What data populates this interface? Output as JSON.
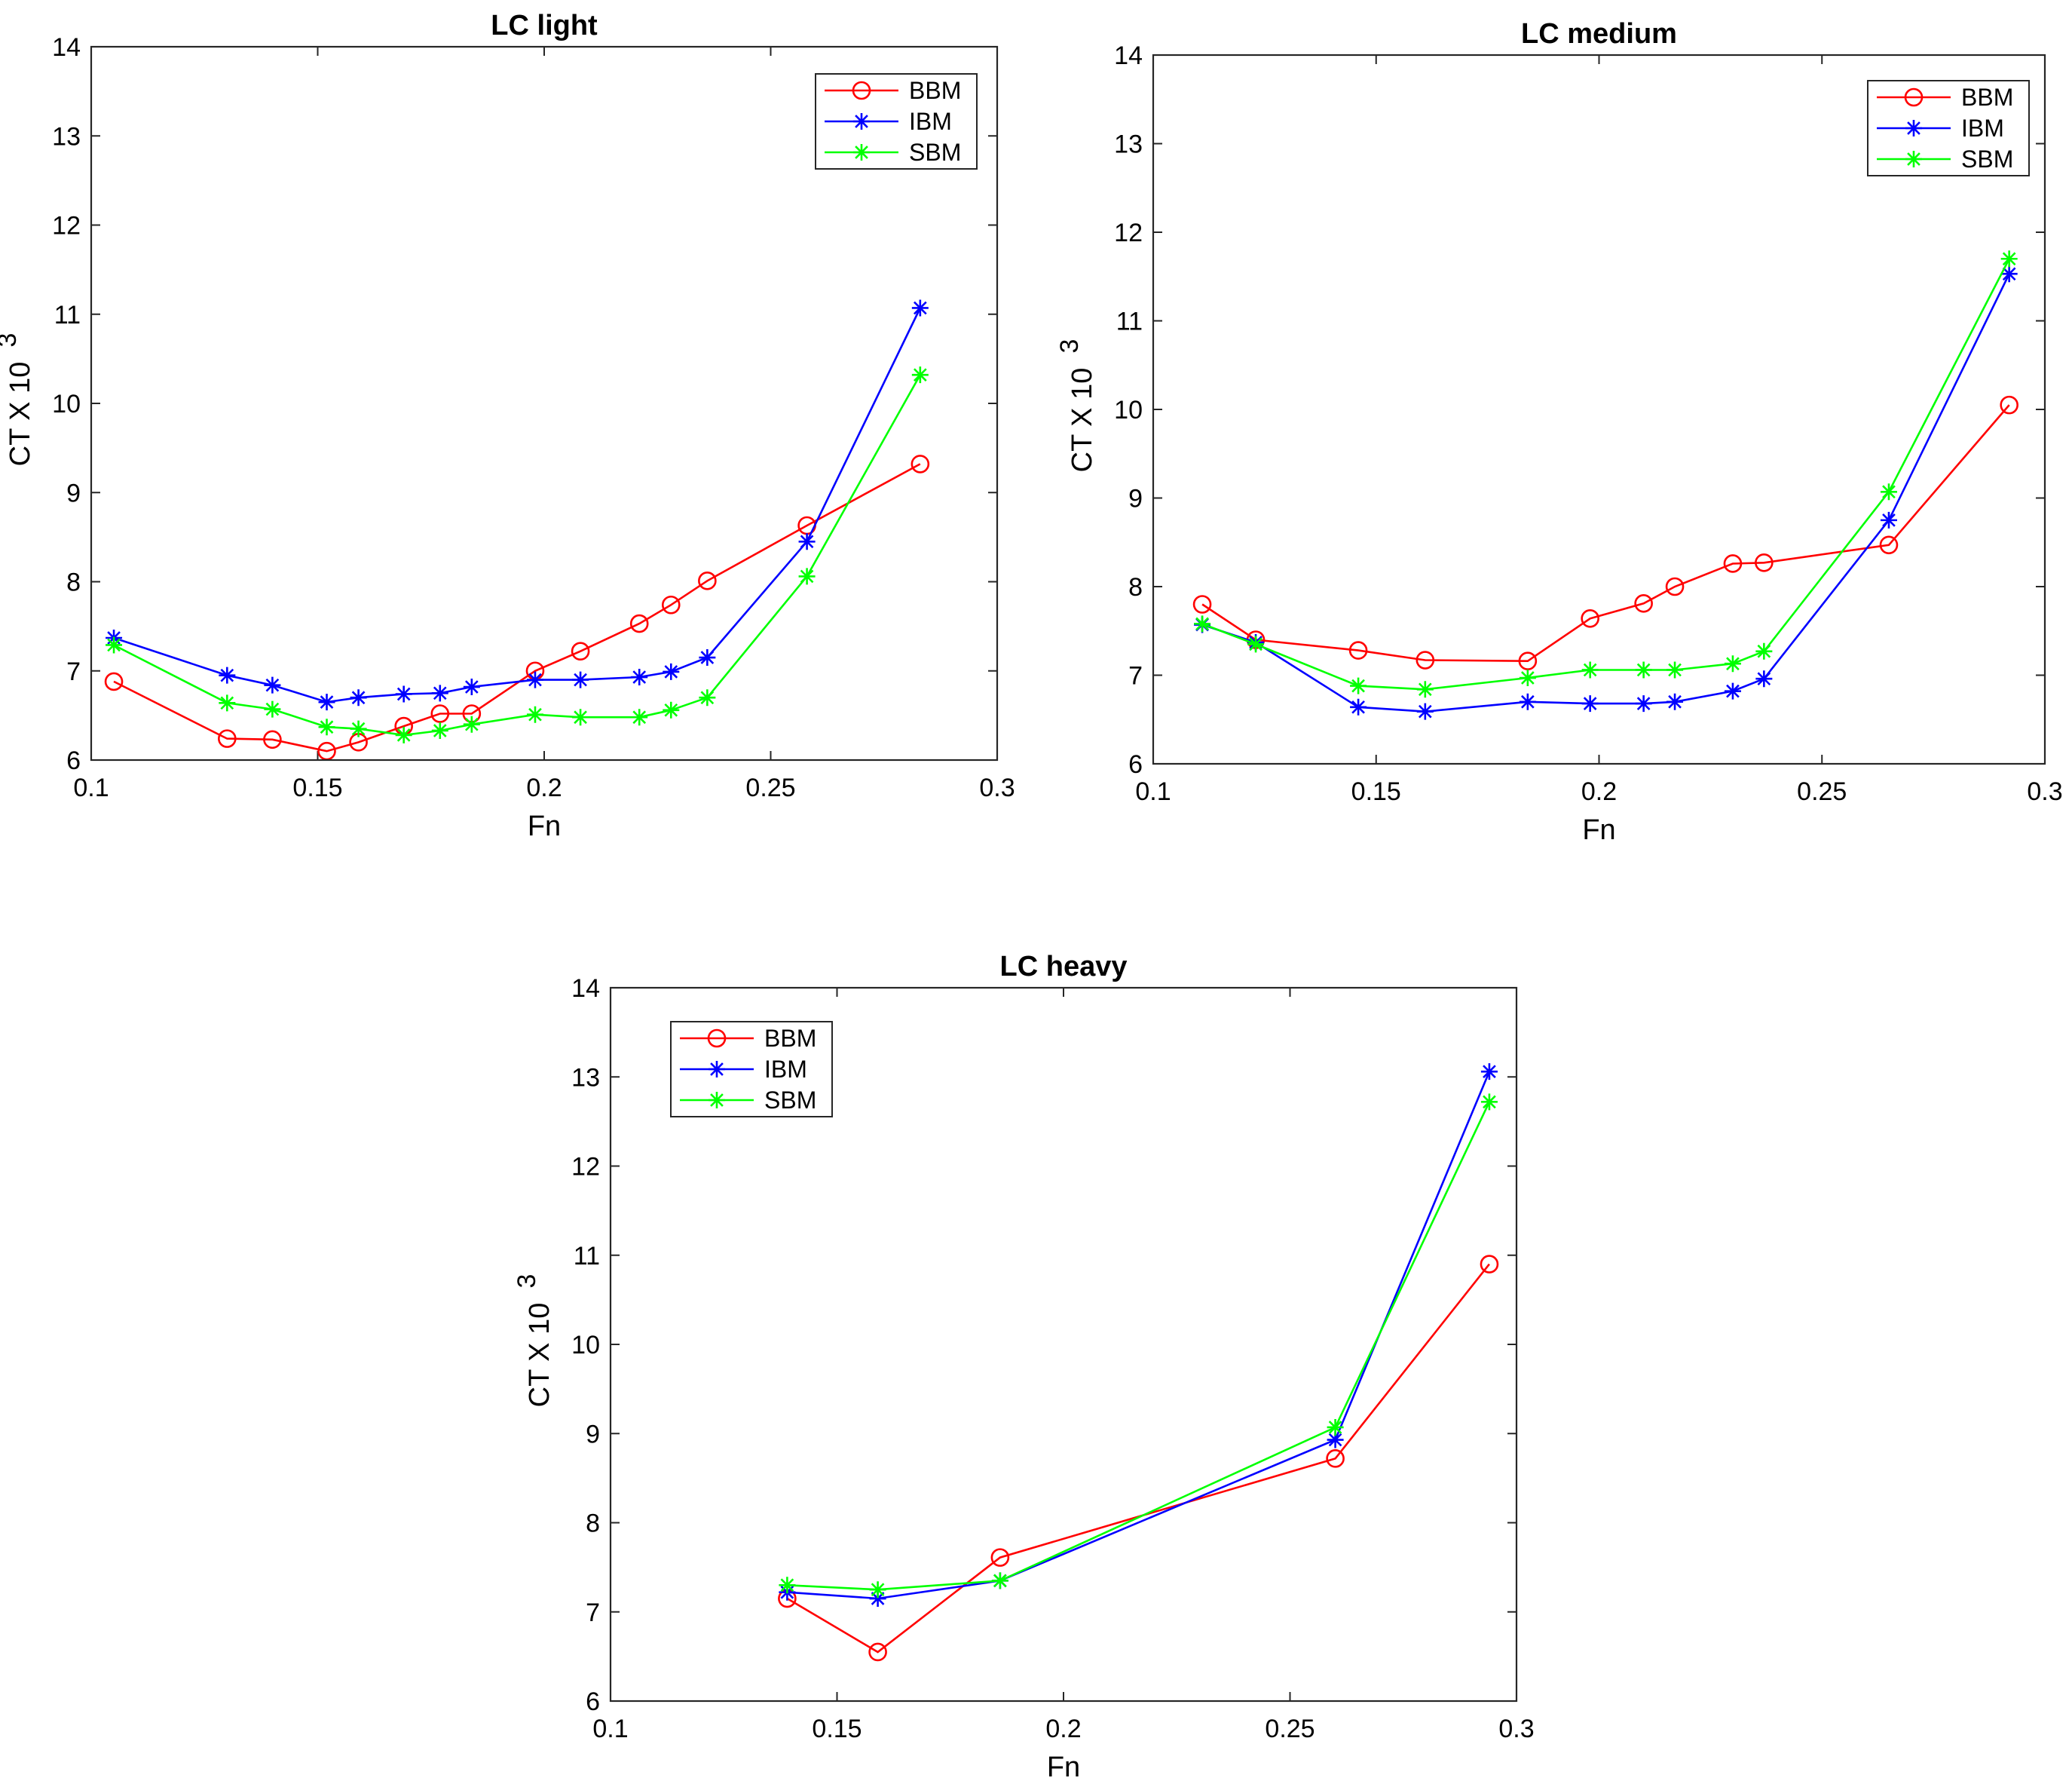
{
  "chart_data": [
    {
      "type": "line",
      "title": "LC light",
      "xlabel": "Fn",
      "ylabel": "CT X 10",
      "ylabel_exponent": "3",
      "xlim": [
        0.1,
        0.3
      ],
      "ylim": [
        6,
        14
      ],
      "xticks": [
        "0.1",
        "0.15",
        "0.2",
        "0.25",
        "0.3"
      ],
      "yticks": [
        "6",
        "7",
        "8",
        "9",
        "10",
        "11",
        "12",
        "13",
        "14"
      ],
      "legend_position": "top-right",
      "series": [
        {
          "name": "BBM",
          "color": "#ff0000",
          "marker": "circle",
          "x": [
            0.105,
            0.13,
            0.14,
            0.152,
            0.159,
            0.169,
            0.177,
            0.184,
            0.198,
            0.208,
            0.221,
            0.228,
            0.236,
            0.258,
            0.283
          ],
          "y": [
            6.88,
            6.24,
            6.23,
            6.1,
            6.2,
            6.38,
            6.52,
            6.52,
            7.0,
            7.22,
            7.53,
            7.74,
            8.01,
            8.63,
            9.32
          ]
        },
        {
          "name": "IBM",
          "color": "#0000ff",
          "marker": "star",
          "x": [
            0.105,
            0.13,
            0.14,
            0.152,
            0.159,
            0.169,
            0.177,
            0.184,
            0.198,
            0.208,
            0.221,
            0.228,
            0.236,
            0.258,
            0.283
          ],
          "y": [
            7.37,
            6.95,
            6.84,
            6.65,
            6.7,
            6.74,
            6.75,
            6.82,
            6.9,
            6.9,
            6.93,
            6.99,
            7.15,
            8.45,
            11.07
          ]
        },
        {
          "name": "SBM",
          "color": "#00ff00",
          "marker": "star",
          "x": [
            0.105,
            0.13,
            0.14,
            0.152,
            0.159,
            0.169,
            0.177,
            0.184,
            0.198,
            0.208,
            0.221,
            0.228,
            0.236,
            0.258,
            0.283
          ],
          "y": [
            7.29,
            6.64,
            6.57,
            6.37,
            6.35,
            6.28,
            6.33,
            6.4,
            6.51,
            6.48,
            6.48,
            6.56,
            6.7,
            8.06,
            10.32
          ]
        }
      ]
    },
    {
      "type": "line",
      "title": "LC medium",
      "xlabel": "Fn",
      "ylabel": "CT X 10",
      "ylabel_exponent": "3",
      "xlim": [
        0.1,
        0.3
      ],
      "ylim": [
        6,
        14
      ],
      "xticks": [
        "0.1",
        "0.15",
        "0.2",
        "0.25",
        "0.3"
      ],
      "yticks": [
        "6",
        "7",
        "8",
        "9",
        "10",
        "11",
        "12",
        "13",
        "14"
      ],
      "legend_position": "top-right",
      "series": [
        {
          "name": "BBM",
          "color": "#ff0000",
          "marker": "circle",
          "x": [
            0.111,
            0.123,
            0.146,
            0.161,
            0.184,
            0.198,
            0.21,
            0.217,
            0.23,
            0.237,
            0.265,
            0.292
          ],
          "y": [
            7.8,
            7.4,
            7.28,
            7.17,
            7.16,
            7.64,
            7.81,
            8.0,
            8.26,
            8.27,
            8.47,
            10.05
          ]
        },
        {
          "name": "IBM",
          "color": "#0000ff",
          "marker": "star",
          "x": [
            0.111,
            0.123,
            0.146,
            0.161,
            0.184,
            0.198,
            0.21,
            0.217,
            0.23,
            0.237,
            0.265,
            0.292
          ],
          "y": [
            7.57,
            7.37,
            6.64,
            6.59,
            6.7,
            6.68,
            6.68,
            6.7,
            6.82,
            6.96,
            8.75,
            11.53
          ]
        },
        {
          "name": "SBM",
          "color": "#00ff00",
          "marker": "star",
          "x": [
            0.111,
            0.123,
            0.146,
            0.161,
            0.184,
            0.198,
            0.21,
            0.217,
            0.23,
            0.237,
            0.265,
            0.292
          ],
          "y": [
            7.58,
            7.35,
            6.88,
            6.84,
            6.97,
            7.06,
            7.06,
            7.06,
            7.13,
            7.27,
            9.07,
            11.7
          ]
        }
      ]
    },
    {
      "type": "line",
      "title": "LC heavy",
      "xlabel": "Fn",
      "ylabel": "CT X 10",
      "ylabel_exponent": "3",
      "xlim": [
        0.1,
        0.3
      ],
      "ylim": [
        6,
        14
      ],
      "xticks": [
        "0.1",
        "0.15",
        "0.2",
        "0.25",
        "0.3"
      ],
      "yticks": [
        "6",
        "7",
        "8",
        "9",
        "10",
        "11",
        "12",
        "13",
        "14"
      ],
      "legend_position": "top-left",
      "series": [
        {
          "name": "BBM",
          "color": "#ff0000",
          "marker": "circle",
          "x": [
            0.139,
            0.159,
            0.186,
            0.26,
            0.294
          ],
          "y": [
            7.15,
            6.55,
            7.61,
            8.72,
            10.9
          ]
        },
        {
          "name": "IBM",
          "color": "#0000ff",
          "marker": "star",
          "x": [
            0.139,
            0.159,
            0.186,
            0.26,
            0.294
          ],
          "y": [
            7.22,
            7.15,
            7.35,
            8.93,
            13.06
          ]
        },
        {
          "name": "SBM",
          "color": "#00ff00",
          "marker": "star",
          "x": [
            0.139,
            0.159,
            0.186,
            0.26,
            0.294
          ],
          "y": [
            7.3,
            7.25,
            7.35,
            9.07,
            12.72
          ]
        }
      ]
    }
  ]
}
